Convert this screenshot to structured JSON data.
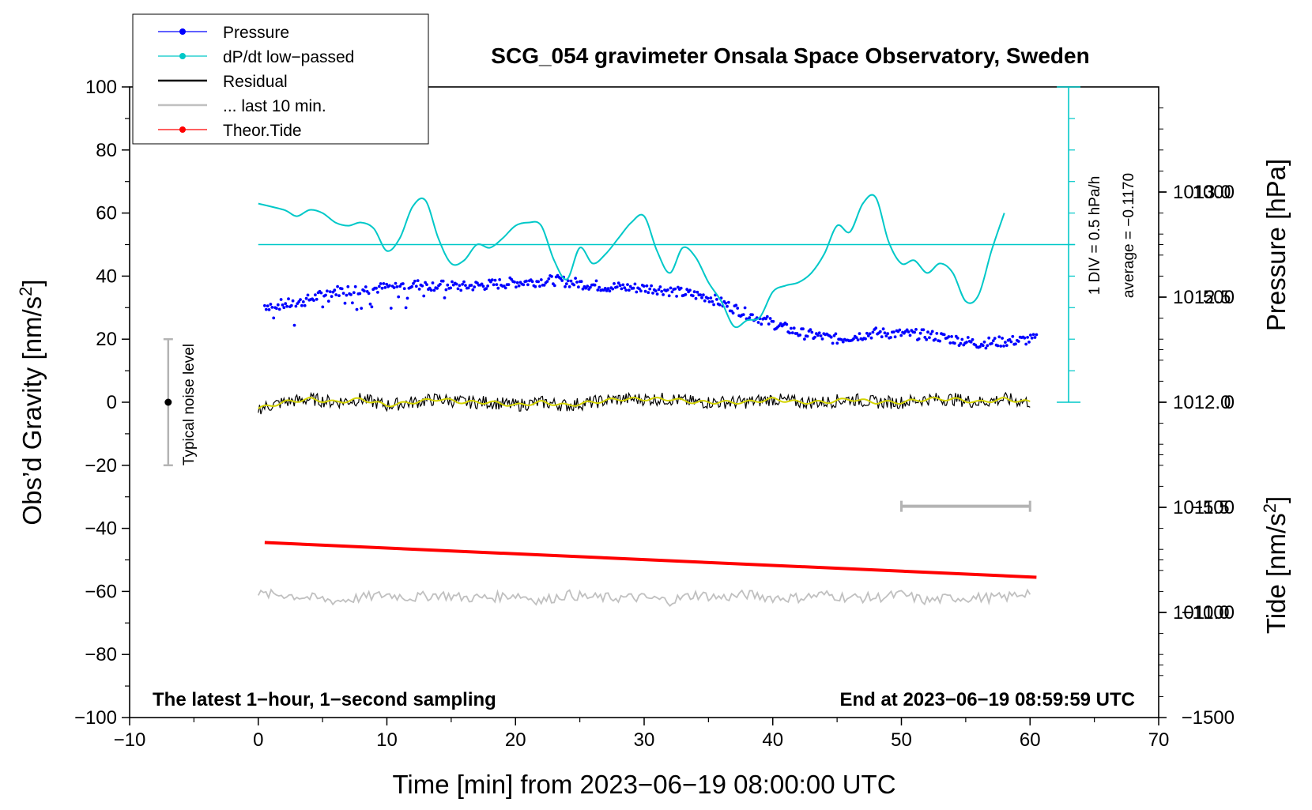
{
  "chart_data": {
    "type": "line",
    "title": "SCG_054 gravimeter Onsala Space Observatory, Sweden",
    "xlabel": "Time [min] from 2023−06−19 08:00:00 UTC",
    "ylabel_left": "Obs’d Gravity [nm/s",
    "ylabel_sup": "2",
    "ylabel_right_top": "Pressure [hPa]",
    "ylabel_right_bottom": "Tide [nm/s",
    "xlim": [
      -10,
      70
    ],
    "ylim_left": [
      -100,
      100
    ],
    "ylim_pressure": [
      1010.5,
      1013.5
    ],
    "ylim_tide": [
      -1500,
      1500
    ],
    "x_ticks": [
      {
        "v": -10,
        "label": "−10"
      },
      {
        "v": 0,
        "label": "0"
      },
      {
        "v": 10,
        "label": "10"
      },
      {
        "v": 20,
        "label": "20"
      },
      {
        "v": 30,
        "label": "30"
      },
      {
        "v": 40,
        "label": "40"
      },
      {
        "v": 50,
        "label": "50"
      },
      {
        "v": 60,
        "label": "60"
      },
      {
        "v": 70,
        "label": "70"
      }
    ],
    "y_ticks_left": [
      {
        "v": 100,
        "label": "100"
      },
      {
        "v": 80,
        "label": "80"
      },
      {
        "v": 60,
        "label": "60"
      },
      {
        "v": 40,
        "label": "40"
      },
      {
        "v": 20,
        "label": "20"
      },
      {
        "v": 0,
        "label": "0"
      },
      {
        "v": -20,
        "label": "−20"
      },
      {
        "v": -40,
        "label": "−40"
      },
      {
        "v": -60,
        "label": "−60"
      },
      {
        "v": -80,
        "label": "−80"
      },
      {
        "v": -100,
        "label": "−100"
      }
    ],
    "y_ticks_pressure": [
      {
        "v": 1013.0,
        "label": "1013.0"
      },
      {
        "v": 1012.5,
        "label": "1012.5"
      },
      {
        "v": 1012.0,
        "label": "1012.0"
      },
      {
        "v": 1011.5,
        "label": "1011.5"
      },
      {
        "v": 1011.0,
        "label": "1011.0"
      }
    ],
    "y_ticks_tide": [
      {
        "v": 1000,
        "label": "1000"
      },
      {
        "v": 500,
        "label": "500"
      },
      {
        "v": 0,
        "label": "0"
      },
      {
        "v": -500,
        "label": "−500"
      },
      {
        "v": -1000,
        "label": "−1000"
      },
      {
        "v": -1500,
        "label": "−1500"
      }
    ],
    "legend": [
      {
        "label": "Pressure",
        "color": "#0000ff",
        "style": "line-dot"
      },
      {
        "label": "dP/dt low−passed",
        "color": "#00c8c8",
        "style": "line-dot"
      },
      {
        "label": "Residual",
        "color": "#000000",
        "style": "line"
      },
      {
        "label": "... last 10 min.",
        "color": "#c0c0c0",
        "style": "line"
      },
      {
        "label": "Theor.Tide",
        "color": "#ff0000",
        "style": "line-dot"
      }
    ],
    "series": {
      "pressure_hpa": {
        "name": "Pressure",
        "color": "#0000ff",
        "x": [
          0.5,
          3,
          6,
          9,
          12,
          16,
          20,
          23,
          27,
          31,
          35,
          38,
          42,
          45,
          48,
          52,
          56,
          60.5
        ],
        "y": [
          1012.46,
          1012.47,
          1012.53,
          1012.54,
          1012.56,
          1012.55,
          1012.57,
          1012.58,
          1012.55,
          1012.54,
          1012.5,
          1012.42,
          1012.33,
          1012.3,
          1012.33,
          1012.32,
          1012.28,
          1012.3
        ]
      },
      "dpdt_low_passed": {
        "name": "dP/dt low−passed",
        "color": "#00c8c8",
        "x": [
          0,
          2,
          3,
          4,
          5,
          6,
          7,
          8,
          9,
          10,
          11,
          12,
          13,
          14,
          15,
          16,
          17,
          18,
          19,
          20,
          21,
          22,
          23,
          24,
          25,
          26,
          27,
          28,
          29,
          30,
          31,
          32,
          33,
          34,
          35,
          36,
          37,
          38,
          39,
          40,
          41,
          42,
          43,
          44,
          45,
          46,
          47,
          48,
          49,
          50,
          51,
          52,
          53,
          54,
          55,
          56,
          57,
          58
        ],
        "y": [
          63,
          61,
          59,
          61,
          60,
          57,
          56,
          57,
          55,
          48,
          52,
          62,
          64,
          52,
          44,
          45,
          50,
          49,
          52,
          56,
          57,
          56,
          45,
          39,
          49,
          44,
          47,
          52,
          57,
          59,
          48,
          41,
          49,
          46,
          38,
          32,
          24,
          26,
          27,
          35,
          37,
          38,
          41,
          47,
          56,
          54,
          63,
          65,
          51,
          44,
          45,
          41,
          44,
          41,
          32,
          34,
          48,
          60
        ],
        "zero_line_left": 50,
        "scale_note": "1 DIV = 0.5 hPa/h",
        "average_note": "average = −0.1170"
      },
      "residual": {
        "name": "Residual",
        "color": "#000000",
        "smoothed_color": "#d4d400",
        "x": [
          0,
          2,
          4,
          6,
          8,
          10,
          12,
          14,
          16,
          18,
          20,
          22,
          24,
          26,
          28,
          30,
          32,
          34,
          36,
          38,
          40,
          42,
          44,
          46,
          48,
          50,
          52,
          54,
          56,
          58,
          60
        ],
        "y": [
          -2,
          0,
          1,
          0,
          1,
          -1,
          0,
          1,
          0,
          0,
          -1,
          0,
          -1,
          0,
          1,
          1,
          1,
          0,
          0,
          0,
          1,
          0,
          0,
          1,
          0,
          0,
          1,
          1,
          0,
          1,
          0
        ]
      },
      "last_10_min": {
        "name": "... last 10 min.",
        "color": "#c0c0c0",
        "x": [
          0,
          2,
          4,
          6,
          8,
          10,
          12,
          14,
          16,
          18,
          20,
          22,
          24,
          26,
          28,
          30,
          32,
          34,
          36,
          38,
          40,
          42,
          44,
          46,
          48,
          50,
          52,
          54,
          56,
          58,
          60
        ],
        "y": [
          -61,
          -61,
          -62,
          -63,
          -62,
          -61,
          -62,
          -61,
          -62,
          -62,
          -61,
          -63,
          -61,
          -62,
          -62,
          -62,
          -63,
          -61,
          -62,
          -61,
          -62,
          -62,
          -61,
          -62,
          -62,
          -61,
          -63,
          -62,
          -62,
          -62,
          -60
        ]
      },
      "theor_tide": {
        "name": "Theor.Tide",
        "color": "#ff0000",
        "x": [
          0.5,
          60.5
        ],
        "y_left_units": [
          -44.5,
          -55.5
        ]
      }
    },
    "annotations": {
      "noise_label": "Typical noise level",
      "noise_bar": {
        "x": -7,
        "low": -20,
        "high": 20,
        "center": 0
      },
      "ten_min_bar": {
        "x_start": 50,
        "x_end": 60,
        "y_left": -33
      },
      "bottom_left": "The latest 1−hour, 1−second sampling",
      "bottom_right": "End at 2023−06−19 08:59:59 UTC",
      "pressure_scale": {
        "x": 63,
        "y_top": 100,
        "y_bottom": 0
      }
    }
  }
}
